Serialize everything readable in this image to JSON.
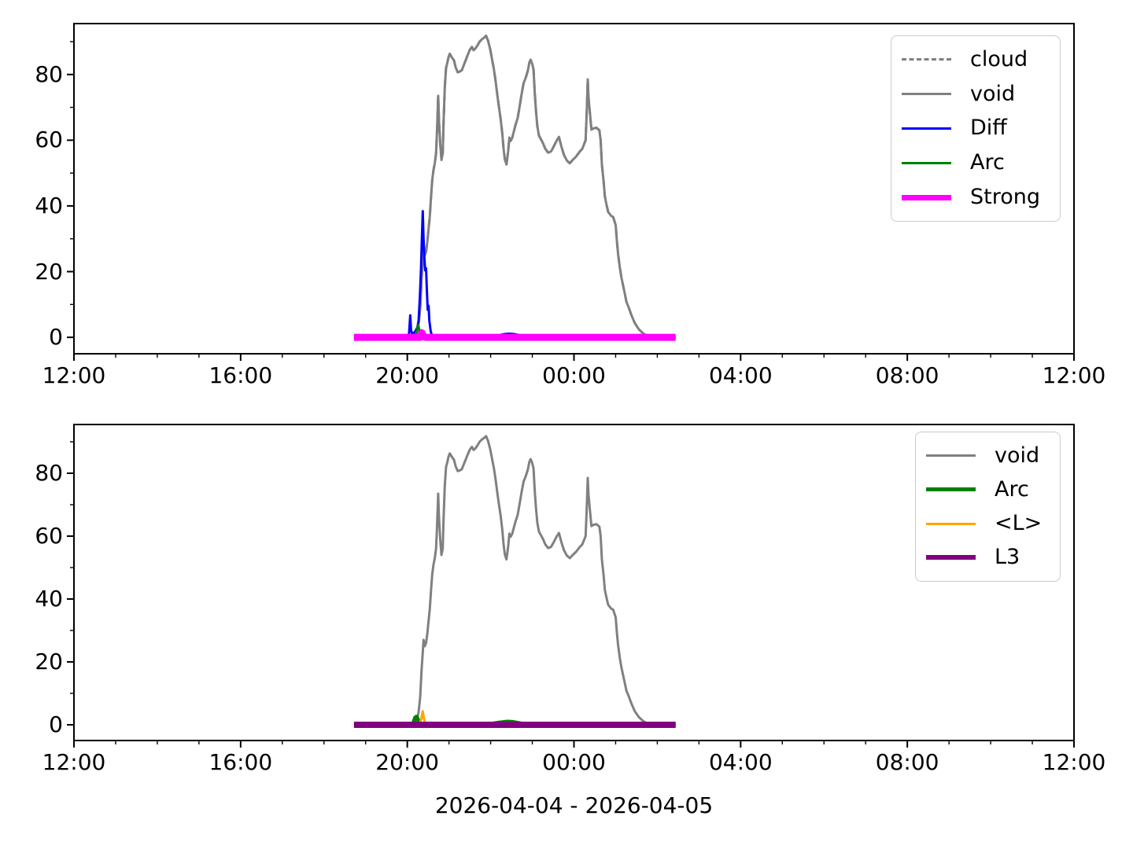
{
  "figure": {
    "xlabel": "2026-04-04 - 2026-04-05",
    "background": "#ffffff",
    "text_color": "#000000"
  },
  "chart_data": [
    {
      "type": "line",
      "title": "",
      "xlabel": "",
      "ylabel": "",
      "x_units": "hour of day (24 = midnight, 36 = noon next day)",
      "xlim": [
        12,
        36
      ],
      "ylim": [
        -5,
        95.5
      ],
      "grid": false,
      "x_ticks": [
        {
          "h": 12,
          "label": "12:00"
        },
        {
          "h": 16,
          "label": "16:00"
        },
        {
          "h": 20,
          "label": "20:00"
        },
        {
          "h": 24,
          "label": "00:00"
        },
        {
          "h": 28,
          "label": "04:00"
        },
        {
          "h": 32,
          "label": "08:00"
        },
        {
          "h": 36,
          "label": "12:00"
        }
      ],
      "y_ticks": [
        {
          "v": 0,
          "label": "0"
        },
        {
          "v": 20,
          "label": "20"
        },
        {
          "v": 40,
          "label": "40"
        },
        {
          "v": 60,
          "label": "60"
        },
        {
          "v": 80,
          "label": "80"
        }
      ],
      "minor_x_step_hours": 1,
      "minor_y_ticks": [
        10,
        30,
        50,
        70,
        90
      ],
      "legend": {
        "position": "upper right"
      },
      "series": [
        {
          "name": "cloud",
          "color": "#808080",
          "linestyle": "dashed",
          "linewidth": 3,
          "points_key": "void"
        },
        {
          "name": "void",
          "color": "#808080",
          "linestyle": "solid",
          "linewidth": 3,
          "points_key": "void"
        },
        {
          "name": "Diff",
          "color": "#0000ff",
          "linestyle": "solid",
          "linewidth": 3,
          "points_key": "Diff"
        },
        {
          "name": "Arc",
          "color": "#008000",
          "linestyle": "solid",
          "linewidth": 3,
          "points_key": "Arc_top"
        },
        {
          "name": "Strong",
          "color": "#ff00ff",
          "linestyle": "solid",
          "linewidth": 9,
          "points_key": "Strong"
        }
      ]
    },
    {
      "type": "line",
      "title": "",
      "xlabel": "2026-04-04 - 2026-04-05",
      "ylabel": "",
      "x_units": "hour of day (24 = midnight, 36 = noon next day)",
      "xlim": [
        12,
        36
      ],
      "ylim": [
        -5,
        95.5
      ],
      "grid": false,
      "x_ticks": [
        {
          "h": 12,
          "label": "12:00"
        },
        {
          "h": 16,
          "label": "16:00"
        },
        {
          "h": 20,
          "label": "20:00"
        },
        {
          "h": 24,
          "label": "00:00"
        },
        {
          "h": 28,
          "label": "04:00"
        },
        {
          "h": 32,
          "label": "08:00"
        },
        {
          "h": 36,
          "label": "12:00"
        }
      ],
      "y_ticks": [
        {
          "v": 0,
          "label": "0"
        },
        {
          "v": 20,
          "label": "20"
        },
        {
          "v": 40,
          "label": "40"
        },
        {
          "v": 60,
          "label": "60"
        },
        {
          "v": 80,
          "label": "80"
        }
      ],
      "minor_x_step_hours": 1,
      "minor_y_ticks": [
        10,
        30,
        50,
        70,
        90
      ],
      "legend": {
        "position": "upper right"
      },
      "series": [
        {
          "name": "void",
          "color": "#808080",
          "linestyle": "solid",
          "linewidth": 3,
          "points_key": "void"
        },
        {
          "name": "Arc",
          "color": "#008000",
          "linestyle": "solid",
          "linewidth": 5,
          "points_key": "Arc_bottom"
        },
        {
          "name": "<L>",
          "color": "#ffa500",
          "linestyle": "solid",
          "linewidth": 3,
          "points_key": "L_mean"
        },
        {
          "name": "L3",
          "color": "#800080",
          "linestyle": "solid",
          "linewidth": 8,
          "points_key": "L3"
        }
      ]
    }
  ],
  "series_points": {
    "void": [
      [
        18.72,
        0
      ],
      [
        20.2,
        0
      ],
      [
        20.23,
        1
      ],
      [
        20.27,
        4
      ],
      [
        20.31,
        9
      ],
      [
        20.34,
        17
      ],
      [
        20.37,
        23
      ],
      [
        20.39,
        27
      ],
      [
        20.42,
        25
      ],
      [
        20.45,
        26
      ],
      [
        20.48,
        29
      ],
      [
        20.51,
        33
      ],
      [
        20.54,
        37
      ],
      [
        20.57,
        43
      ],
      [
        20.6,
        48
      ],
      [
        20.63,
        51
      ],
      [
        20.66,
        53
      ],
      [
        20.69,
        56
      ],
      [
        20.71,
        62
      ],
      [
        20.73,
        69
      ],
      [
        20.74,
        73.5
      ],
      [
        20.76,
        66
      ],
      [
        20.79,
        59
      ],
      [
        20.82,
        54
      ],
      [
        20.85,
        56
      ],
      [
        20.87,
        65
      ],
      [
        20.9,
        76
      ],
      [
        20.93,
        82
      ],
      [
        20.96,
        83.5
      ],
      [
        20.99,
        85.3
      ],
      [
        21.02,
        86.3
      ],
      [
        21.07,
        85.2
      ],
      [
        21.12,
        84.3
      ],
      [
        21.16,
        82.2
      ],
      [
        21.21,
        80.7
      ],
      [
        21.26,
        80.9
      ],
      [
        21.31,
        81.3
      ],
      [
        21.36,
        83
      ],
      [
        21.4,
        84.3
      ],
      [
        21.45,
        86
      ],
      [
        21.5,
        87.5
      ],
      [
        21.55,
        88.4
      ],
      [
        21.59,
        87.4
      ],
      [
        21.64,
        88
      ],
      [
        21.69,
        89
      ],
      [
        21.73,
        89.9
      ],
      [
        21.78,
        90.6
      ],
      [
        21.84,
        91.2
      ],
      [
        21.89,
        91.8
      ],
      [
        21.94,
        90.2
      ],
      [
        21.99,
        87.6
      ],
      [
        22.04,
        84.2
      ],
      [
        22.08,
        81.5
      ],
      [
        22.12,
        78
      ],
      [
        22.16,
        73.7
      ],
      [
        22.2,
        70
      ],
      [
        22.24,
        66.5
      ],
      [
        22.28,
        62
      ],
      [
        22.31,
        57.5
      ],
      [
        22.34,
        54.2
      ],
      [
        22.38,
        52.6
      ],
      [
        22.42,
        56.5
      ],
      [
        22.45,
        60.8
      ],
      [
        22.48,
        59.8
      ],
      [
        22.52,
        60.8
      ],
      [
        22.56,
        62.8
      ],
      [
        22.6,
        64.8
      ],
      [
        22.65,
        66.8
      ],
      [
        22.69,
        69.8
      ],
      [
        22.74,
        73.8
      ],
      [
        22.79,
        77.3
      ],
      [
        22.84,
        79
      ],
      [
        22.89,
        81
      ],
      [
        22.93,
        83.6
      ],
      [
        22.96,
        84.5
      ],
      [
        23.0,
        83.2
      ],
      [
        23.03,
        81.5
      ],
      [
        23.06,
        74.2
      ],
      [
        23.09,
        68.7
      ],
      [
        23.12,
        64.3
      ],
      [
        23.16,
        61.4
      ],
      [
        23.21,
        60.2
      ],
      [
        23.26,
        59
      ],
      [
        23.31,
        57.4
      ],
      [
        23.38,
        56.2
      ],
      [
        23.45,
        56.6
      ],
      [
        23.51,
        58
      ],
      [
        23.58,
        59.8
      ],
      [
        23.64,
        61
      ],
      [
        23.7,
        58
      ],
      [
        23.76,
        55.5
      ],
      [
        23.83,
        53.8
      ],
      [
        23.9,
        53
      ],
      [
        23.97,
        54
      ],
      [
        24.05,
        55
      ],
      [
        24.13,
        56.4
      ],
      [
        24.2,
        57.4
      ],
      [
        24.28,
        60
      ],
      [
        24.31,
        70
      ],
      [
        24.33,
        78.5
      ],
      [
        24.35,
        73
      ],
      [
        24.38,
        68.7
      ],
      [
        24.42,
        63.2
      ],
      [
        24.47,
        63.6
      ],
      [
        24.54,
        63.8
      ],
      [
        24.61,
        63
      ],
      [
        24.64,
        60
      ],
      [
        24.67,
        52.5
      ],
      [
        24.71,
        47.7
      ],
      [
        24.74,
        43
      ],
      [
        24.77,
        41
      ],
      [
        24.82,
        38.2
      ],
      [
        24.89,
        37
      ],
      [
        24.94,
        36.6
      ],
      [
        25.0,
        34.2
      ],
      [
        25.03,
        29.4
      ],
      [
        25.06,
        25.3
      ],
      [
        25.1,
        21.2
      ],
      [
        25.14,
        18.1
      ],
      [
        25.18,
        15.7
      ],
      [
        25.22,
        13.3
      ],
      [
        25.26,
        10.8
      ],
      [
        25.31,
        9.2
      ],
      [
        25.38,
        6.7
      ],
      [
        25.46,
        4.3
      ],
      [
        25.56,
        2.4
      ],
      [
        25.66,
        1.2
      ],
      [
        25.76,
        0.4
      ],
      [
        25.88,
        0.1
      ],
      [
        26.44,
        0
      ]
    ],
    "Diff": [
      [
        18.72,
        0
      ],
      [
        20.0,
        0
      ],
      [
        20.04,
        0.8
      ],
      [
        20.07,
        6.7
      ],
      [
        20.09,
        2.2
      ],
      [
        20.12,
        1
      ],
      [
        20.16,
        1.4
      ],
      [
        20.2,
        2
      ],
      [
        20.24,
        3
      ],
      [
        20.27,
        5
      ],
      [
        20.3,
        12
      ],
      [
        20.33,
        21
      ],
      [
        20.35,
        30
      ],
      [
        20.37,
        38.4
      ],
      [
        20.39,
        30
      ],
      [
        20.41,
        24
      ],
      [
        20.43,
        20.4
      ],
      [
        20.45,
        21
      ],
      [
        20.47,
        14
      ],
      [
        20.49,
        8.4
      ],
      [
        20.51,
        9.6
      ],
      [
        20.53,
        5
      ],
      [
        20.56,
        2
      ],
      [
        20.59,
        0.5
      ],
      [
        20.65,
        0
      ],
      [
        22.05,
        0
      ],
      [
        22.15,
        0.3
      ],
      [
        22.25,
        0.8
      ],
      [
        22.35,
        1
      ],
      [
        22.45,
        1.1
      ],
      [
        22.55,
        1
      ],
      [
        22.65,
        0.8
      ],
      [
        22.75,
        0.4
      ],
      [
        22.85,
        0.1
      ],
      [
        22.95,
        0
      ],
      [
        26.44,
        0
      ]
    ],
    "Arc_top": [
      [
        18.72,
        0
      ],
      [
        20.14,
        0
      ],
      [
        20.19,
        0.5
      ],
      [
        20.23,
        2
      ],
      [
        20.26,
        3.8
      ],
      [
        20.29,
        2.2
      ],
      [
        20.33,
        0.8
      ],
      [
        20.38,
        0.3
      ],
      [
        20.44,
        0
      ],
      [
        22.1,
        0
      ],
      [
        22.3,
        0.3
      ],
      [
        22.45,
        0.5
      ],
      [
        22.6,
        0.3
      ],
      [
        22.75,
        0.1
      ],
      [
        22.9,
        0
      ],
      [
        26.44,
        0
      ]
    ],
    "Strong": [
      [
        18.72,
        0
      ],
      [
        20.31,
        0
      ],
      [
        20.35,
        1.4
      ],
      [
        20.39,
        0.3
      ],
      [
        20.44,
        0
      ],
      [
        26.44,
        0
      ]
    ],
    "Arc_bottom": [
      [
        18.72,
        0
      ],
      [
        20.11,
        0
      ],
      [
        20.15,
        0.8
      ],
      [
        20.19,
        2.3
      ],
      [
        20.22,
        2.6
      ],
      [
        20.26,
        1.6
      ],
      [
        20.3,
        0.6
      ],
      [
        20.36,
        0
      ],
      [
        21.8,
        0
      ],
      [
        22.0,
        0.3
      ],
      [
        22.2,
        0.7
      ],
      [
        22.4,
        1
      ],
      [
        22.54,
        0.9
      ],
      [
        22.69,
        0.5
      ],
      [
        22.85,
        0.2
      ],
      [
        23.0,
        0
      ],
      [
        26.44,
        0
      ]
    ],
    "L_mean": [
      [
        18.72,
        0
      ],
      [
        20.3,
        0
      ],
      [
        20.34,
        2.2
      ],
      [
        20.37,
        4.3
      ],
      [
        20.4,
        2
      ],
      [
        20.43,
        0.5
      ],
      [
        20.47,
        0
      ],
      [
        26.44,
        0
      ]
    ],
    "L3": [
      [
        18.72,
        0
      ],
      [
        26.44,
        0
      ]
    ]
  }
}
